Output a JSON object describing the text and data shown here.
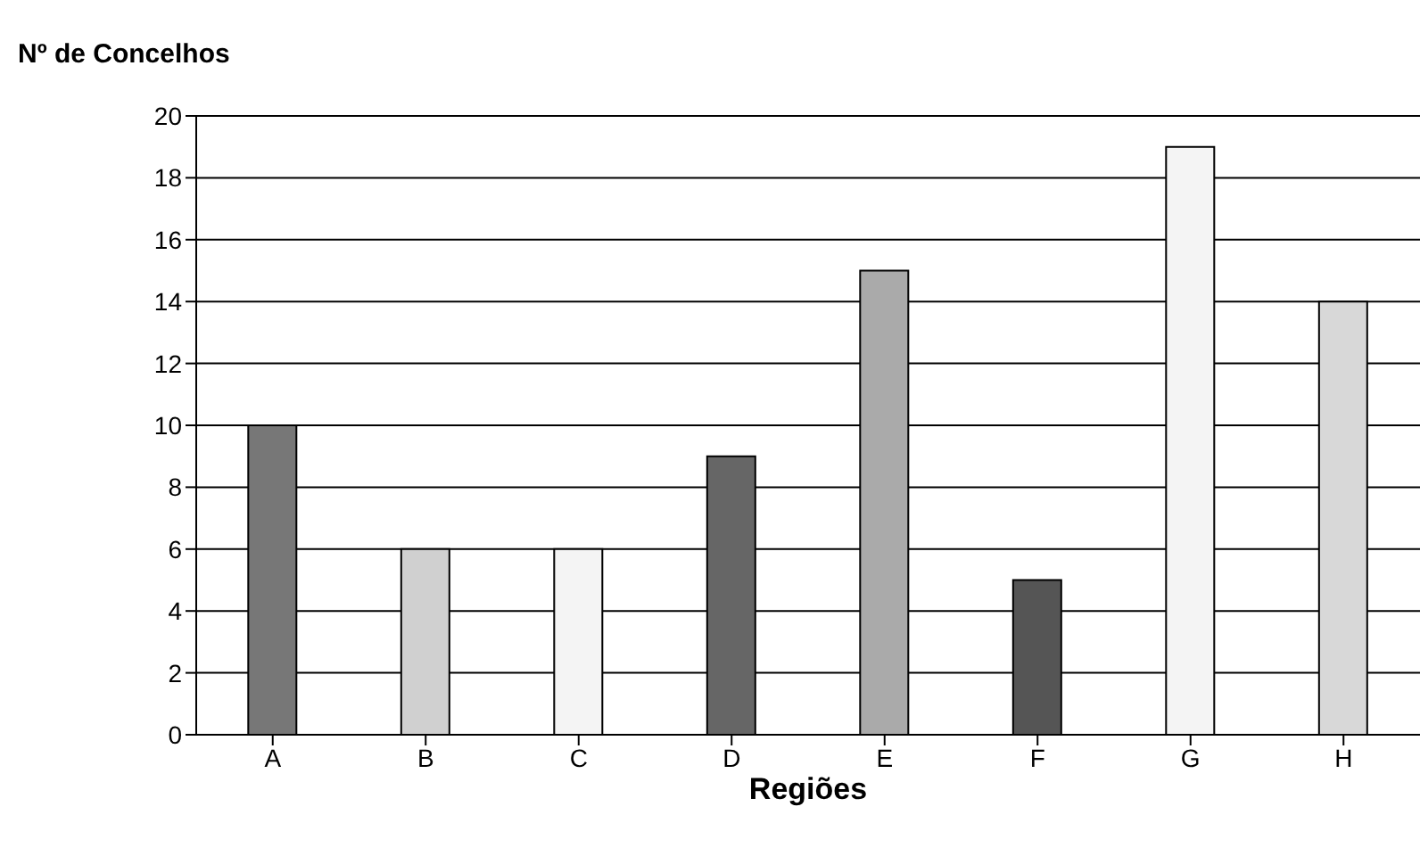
{
  "chart_data": {
    "type": "bar",
    "title": "Nº de Concelhos",
    "xlabel": "Regiões",
    "categories": [
      "A",
      "B",
      "C",
      "D",
      "E",
      "F",
      "G",
      "H"
    ],
    "values": [
      10,
      6,
      6,
      9,
      15,
      5,
      19,
      14
    ],
    "colors": [
      "#777777",
      "#d0d0d0",
      "#f4f4f4",
      "#666666",
      "#aaaaaa",
      "#555555",
      "#f4f4f4",
      "#d8d8d8"
    ],
    "ylim": [
      0,
      20
    ],
    "yticks": [
      0,
      2,
      4,
      6,
      8,
      10,
      12,
      14,
      16,
      18,
      20
    ],
    "grid": "y"
  }
}
